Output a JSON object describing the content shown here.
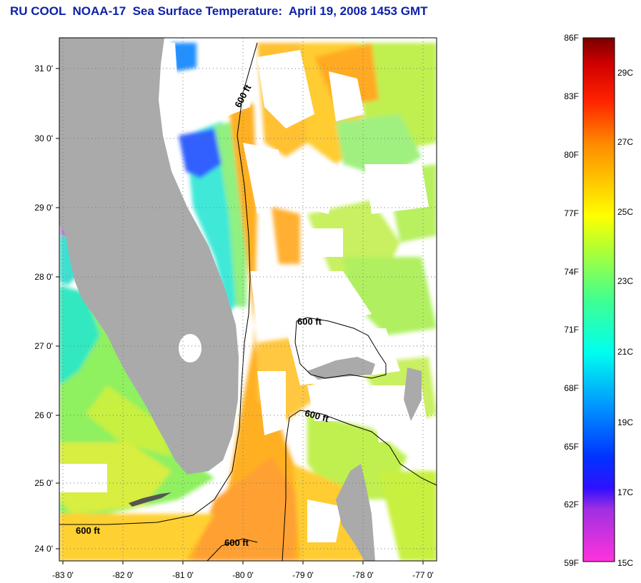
{
  "title": "RU COOL  NOAA-17  Sea Surface Temperature:  April 19, 2008 1453 GMT",
  "map": {
    "lon_ticks": [
      "-83 0'",
      "-82 0'",
      "-81 0'",
      "-80 0'",
      "-79 0'",
      "-78 0'",
      "-77 0'"
    ],
    "lat_ticks": [
      "31 0'",
      "30 0'",
      "29 0'",
      "28 0'",
      "27 0'",
      "26 0'",
      "25 0'",
      "24 0'"
    ],
    "isobath_labels": [
      "600 ft",
      "600 ft",
      "600 ft",
      "600 ft",
      "600 ft"
    ],
    "colors": {
      "land": "#aaaaaa",
      "frame": "#000000"
    }
  },
  "colorbar": {
    "fahrenheit": [
      "86F",
      "83F",
      "80F",
      "77F",
      "74F",
      "71F",
      "68F",
      "65F",
      "62F",
      "59F"
    ],
    "celsius": [
      "29C",
      "27C",
      "25C",
      "23C",
      "21C",
      "19C",
      "17C",
      "15C"
    ]
  }
}
